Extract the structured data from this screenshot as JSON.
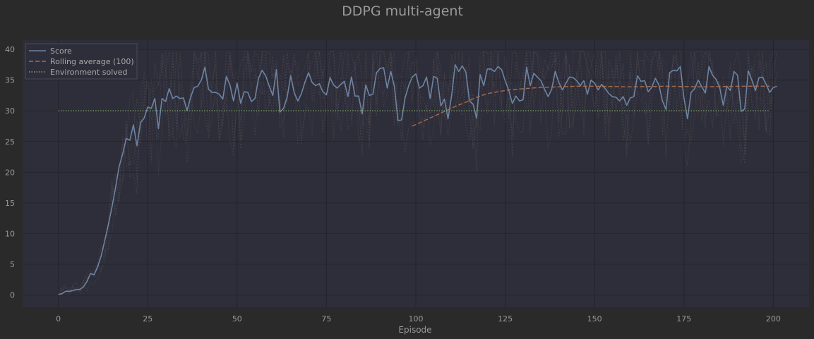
{
  "chart_data": {
    "type": "line",
    "title": "DDPG multi-agent",
    "xlabel": "Episode",
    "ylabel": "",
    "xlim": [
      -10,
      210
    ],
    "ylim": [
      -2,
      41.5
    ],
    "xticks": [
      0,
      25,
      50,
      75,
      100,
      125,
      150,
      175,
      200
    ],
    "yticks": [
      0,
      5,
      10,
      15,
      20,
      25,
      30,
      35,
      40
    ],
    "grid": true,
    "legend_position": "top-left",
    "background_color": "#2e2e3a",
    "series": [
      {
        "name": "Score",
        "style": "solid",
        "color": "#6d84a3",
        "x_start": 0,
        "values": [
          0.1,
          0.2,
          0.6,
          0.6,
          0.7,
          0.9,
          0.9,
          1.3,
          2.2,
          3.5,
          3.3,
          4.6,
          6.4,
          8.9,
          11.5,
          14.3,
          17.5,
          20.9,
          23.0,
          25.5,
          25.2,
          27.7,
          24.3,
          28.1,
          28.8,
          30.6,
          30.4,
          32.0,
          27.1,
          32.0,
          31.5,
          33.6,
          32.0,
          32.4,
          32.0,
          32.1,
          30.0,
          32.2,
          33.8,
          34.0,
          35.0,
          37.1,
          33.5,
          33.0,
          33.0,
          32.7,
          31.9,
          35.6,
          34.2,
          31.6,
          34.5,
          31.2,
          33.1,
          33.0,
          31.5,
          32.0,
          35.3,
          36.6,
          35.7,
          34.0,
          32.5,
          36.7,
          29.8,
          30.4,
          32.2,
          35.7,
          32.9,
          31.6,
          32.8,
          34.7,
          36.2,
          34.6,
          34.1,
          34.4,
          33.1,
          32.6,
          35.4,
          34.2,
          33.7,
          34.3,
          34.8,
          32.3,
          35.5,
          32.4,
          32.4,
          29.5,
          34.2,
          32.5,
          32.7,
          36.2,
          36.9,
          37.0,
          33.7,
          36.4,
          34.0,
          28.4,
          28.5,
          32.1,
          34.1,
          35.5,
          36.0,
          33.7,
          34.1,
          35.5,
          32.0,
          35.6,
          35.3,
          30.8,
          31.9,
          28.7,
          32.4,
          37.5,
          36.4,
          37.3,
          36.3,
          31.6,
          31.1,
          28.8,
          35.9,
          34.1,
          36.8,
          36.8,
          36.4,
          37.2,
          36.7,
          34.9,
          33.3,
          31.2,
          32.4,
          31.6,
          31.8,
          37.1,
          34.1,
          36.1,
          35.5,
          34.9,
          33.5,
          32.3,
          33.5,
          36.4,
          34.6,
          33.4,
          34.5,
          35.5,
          35.4,
          34.9,
          34.1,
          34.9,
          32.7,
          35.0,
          34.5,
          33.4,
          34.3,
          33.6,
          32.8,
          32.3,
          32.2,
          31.6,
          32.3,
          30.9,
          32.1,
          32.3,
          35.7,
          34.8,
          34.9,
          33.1,
          33.8,
          35.3,
          34.2,
          31.6,
          30.2,
          36.2,
          36.6,
          36.5,
          37.2,
          32.1,
          28.7,
          33.0,
          33.6,
          35.0,
          33.9,
          32.9,
          37.2,
          35.8,
          35.1,
          33.8,
          30.9,
          34.0,
          33.3,
          36.4,
          35.8,
          29.9,
          30.3,
          36.5,
          35.0,
          33.3,
          35.4,
          35.5,
          34.3,
          33.0,
          33.8,
          34.0
        ]
      },
      {
        "name": "Rolling average (100)",
        "style": "dashed",
        "color": "#a86d4e",
        "x": [
          99,
          102,
          105,
          108,
          111,
          114,
          117,
          120,
          123,
          126,
          130,
          135,
          140,
          145,
          150,
          160,
          170,
          180,
          190,
          199
        ],
        "y": [
          27.5,
          28.3,
          29.1,
          29.9,
          30.7,
          31.4,
          32.2,
          32.8,
          33.1,
          33.4,
          33.6,
          33.8,
          33.9,
          34.0,
          34.0,
          33.9,
          34.0,
          33.9,
          34.0,
          34.0
        ]
      },
      {
        "name": "Environment solved",
        "style": "dotted",
        "color": "#7fa46a",
        "x": [
          0,
          199
        ],
        "y": [
          30,
          30
        ]
      }
    ],
    "per_agent_color": "#55506a"
  }
}
